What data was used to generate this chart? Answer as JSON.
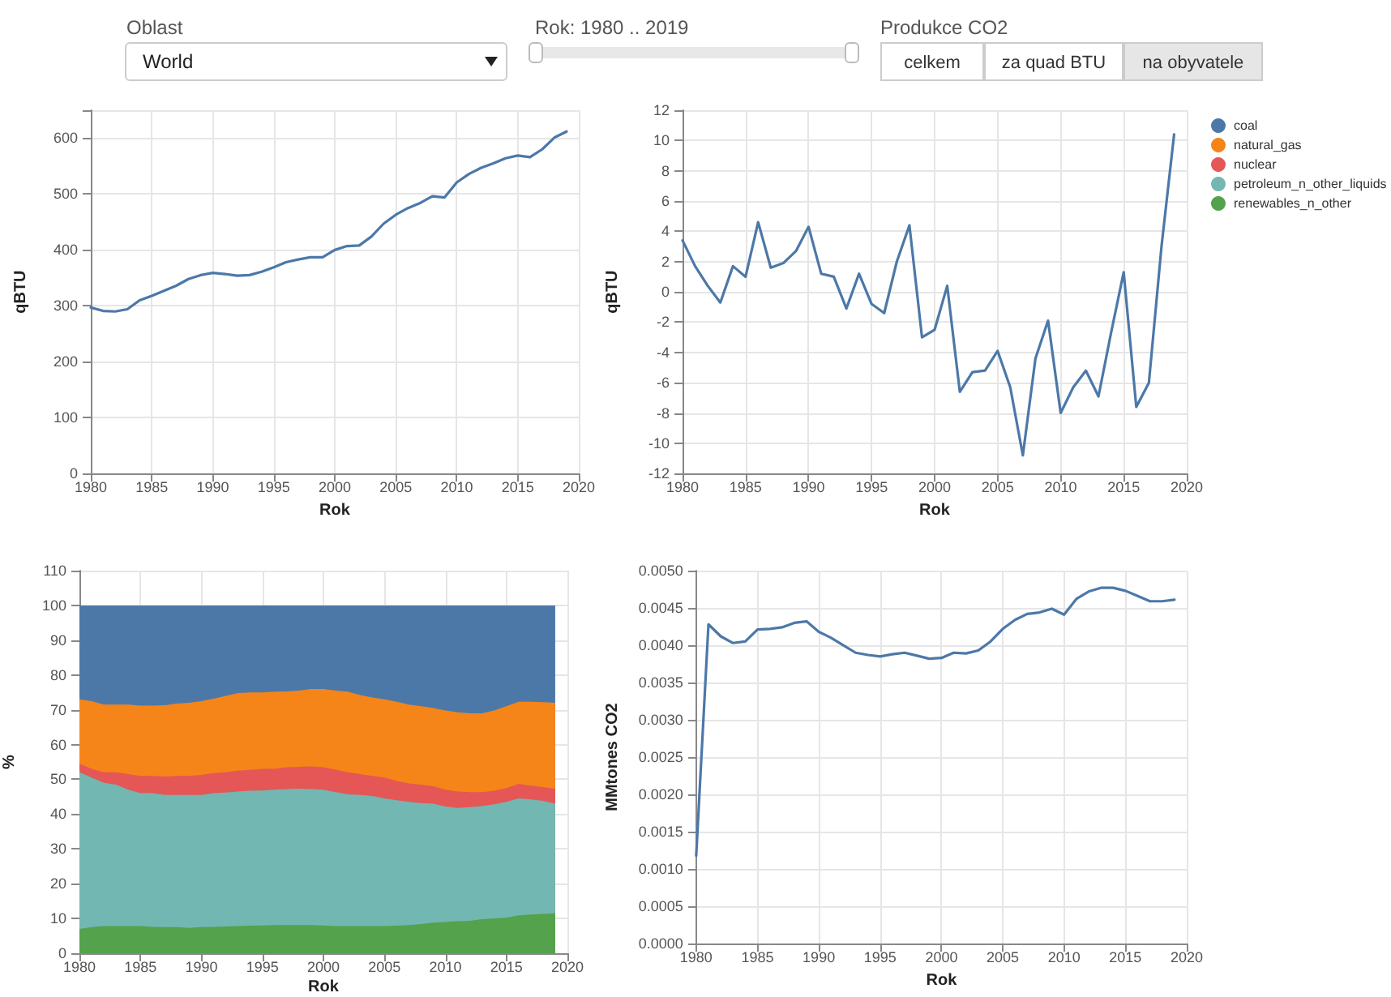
{
  "chart_data": [
    {
      "type": "other",
      "annotations": [
        "Oblast",
        "World",
        "Rok: 1980 .. 2019",
        "Produkce CO2",
        "celkem",
        "za quad BTU",
        "na obyvatele"
      ]
    },
    {
      "type": "line",
      "xlabel": "Rok",
      "ylabel": "qBTU",
      "grid": true,
      "marker": "none",
      "x": [
        1980,
        1981,
        1982,
        1983,
        1984,
        1985,
        1986,
        1987,
        1988,
        1989,
        1990,
        1991,
        1992,
        1993,
        1994,
        1995,
        1996,
        1997,
        1998,
        1999,
        2000,
        2001,
        2002,
        2003,
        2004,
        2005,
        2006,
        2007,
        2008,
        2009,
        2010,
        2011,
        2012,
        2013,
        2014,
        2015,
        2016,
        2017,
        2018,
        2019
      ],
      "xlim": [
        1980,
        2020
      ],
      "xticks": [
        1980,
        1985,
        1990,
        1995,
        2000,
        2005,
        2010,
        2015,
        2020
      ],
      "ylim": [
        0,
        650
      ],
      "yticks": [
        0,
        100,
        200,
        300,
        400,
        500,
        600
      ],
      "series": [
        {
          "color": "#4c78a8",
          "values": [
            297,
            291,
            290,
            294,
            310,
            318,
            327,
            336,
            348,
            355,
            359,
            357,
            354,
            355,
            361,
            369,
            378,
            383,
            387,
            387,
            400,
            407,
            408,
            424,
            447,
            463,
            475,
            484,
            496,
            494,
            521,
            536,
            547,
            555,
            564,
            569,
            566,
            580,
            601,
            612
          ]
        }
      ]
    },
    {
      "type": "line",
      "xlabel": "Rok",
      "ylabel": "qBTU",
      "grid": true,
      "marker": "none",
      "x": [
        1980,
        1981,
        1982,
        1983,
        1984,
        1985,
        1986,
        1987,
        1988,
        1989,
        1990,
        1991,
        1992,
        1993,
        1994,
        1995,
        1996,
        1997,
        1998,
        1999,
        2000,
        2001,
        2002,
        2003,
        2004,
        2005,
        2006,
        2007,
        2008,
        2009,
        2010,
        2011,
        2012,
        2013,
        2014,
        2015,
        2016,
        2017,
        2018,
        2019
      ],
      "xlim": [
        1980,
        2020
      ],
      "xticks": [
        1980,
        1985,
        1990,
        1995,
        2000,
        2005,
        2010,
        2015,
        2020
      ],
      "ylim": [
        -12,
        12
      ],
      "yticks": [
        -12,
        -10,
        -8,
        -6,
        -4,
        -2,
        0,
        2,
        4,
        6,
        8,
        10,
        12
      ],
      "series": [
        {
          "color": "#4c78a8",
          "values": [
            3.4,
            1.7,
            0.4,
            -0.7,
            1.7,
            1.0,
            4.6,
            1.6,
            1.9,
            2.7,
            4.3,
            1.2,
            1.0,
            -1.1,
            1.2,
            -0.8,
            -1.4,
            2.0,
            4.4,
            -3.0,
            -2.5,
            0.4,
            -6.6,
            -5.3,
            -5.2,
            -3.9,
            -6.3,
            -10.8,
            -4.4,
            -1.9,
            -8.0,
            -6.3,
            -5.2,
            -6.9,
            -2.7,
            1.3,
            -7.6,
            -6.0,
            3.0,
            10.4
          ]
        }
      ]
    },
    {
      "type": "area",
      "stacked": true,
      "xlabel": "Rok",
      "ylabel": "%",
      "grid": true,
      "legend": "top right",
      "x": [
        1980,
        1981,
        1982,
        1983,
        1984,
        1985,
        1986,
        1987,
        1988,
        1989,
        1990,
        1991,
        1992,
        1993,
        1994,
        1995,
        1996,
        1997,
        1998,
        1999,
        2000,
        2001,
        2002,
        2003,
        2004,
        2005,
        2006,
        2007,
        2008,
        2009,
        2010,
        2011,
        2012,
        2013,
        2014,
        2015,
        2016,
        2017,
        2018,
        2019
      ],
      "xlim": [
        1980,
        2020
      ],
      "xticks": [
        1980,
        1985,
        1990,
        1995,
        2000,
        2005,
        2010,
        2015,
        2020
      ],
      "ylim": [
        0,
        110
      ],
      "yticks": [
        0,
        10,
        20,
        30,
        40,
        50,
        60,
        70,
        80,
        90,
        100,
        110
      ],
      "series": [
        {
          "name": "renewables_n_other",
          "color": "#54a24b",
          "values": [
            7,
            7.5,
            7.8,
            7.8,
            7.8,
            7.8,
            7.6,
            7.5,
            7.5,
            7.3,
            7.5,
            7.6,
            7.7,
            7.8,
            7.9,
            8.0,
            8.1,
            8.1,
            8.1,
            8.1,
            8.0,
            7.8,
            7.8,
            7.8,
            7.8,
            7.8,
            7.9,
            8.1,
            8.4,
            8.8,
            9.0,
            9.2,
            9.3,
            9.8,
            10.0,
            10.2,
            10.9,
            11.1,
            11.3,
            11.5
          ]
        },
        {
          "name": "petroleum_n_other_liquids",
          "color": "#72b7b2",
          "values": [
            45,
            43,
            41.2,
            40.7,
            39.2,
            38.2,
            38.4,
            38,
            38,
            38.2,
            38,
            38.4,
            38.5,
            38.7,
            38.8,
            38.8,
            38.9,
            39.1,
            39.2,
            39.1,
            39,
            38.5,
            37.9,
            37.7,
            37.4,
            36.7,
            36.1,
            35.4,
            34.8,
            34.2,
            33.2,
            32.6,
            32.7,
            32.5,
            32.8,
            33.3,
            33.6,
            33.1,
            32.5,
            31.5
          ]
        },
        {
          "name": "nuclear",
          "color": "#e45756",
          "values": [
            2.5,
            2.5,
            3,
            3.5,
            4.5,
            5,
            5,
            5.3,
            5.5,
            5.5,
            5.8,
            5.8,
            5.8,
            6,
            6,
            6.2,
            6,
            6.3,
            6.3,
            6.5,
            6.5,
            6.5,
            6.3,
            6,
            5.8,
            6,
            5.5,
            5.3,
            5.3,
            5,
            4.8,
            4.7,
            4.3,
            4,
            3.9,
            4,
            4.2,
            4,
            4,
            4.3
          ]
        },
        {
          "name": "natural_gas",
          "color": "#f58518",
          "values": [
            18.5,
            19.5,
            19.5,
            19.5,
            20,
            20.2,
            20.2,
            20.5,
            20.8,
            21,
            21.2,
            21.4,
            22,
            22.3,
            22.3,
            22,
            22.2,
            21.8,
            21.9,
            22.3,
            22.5,
            22.7,
            23.2,
            22.7,
            22.5,
            22.5,
            22.8,
            22.7,
            22.5,
            22.5,
            22.8,
            22.8,
            22.7,
            22.7,
            23.1,
            23.5,
            23.6,
            24.1,
            24.4,
            24.7
          ]
        },
        {
          "name": "coal",
          "color": "#4c78a8",
          "values": [
            27,
            27.5,
            28.5,
            28.5,
            28.5,
            28.8,
            28.8,
            28.7,
            28.2,
            28,
            27.5,
            26.8,
            26,
            25.2,
            25,
            25,
            24.8,
            24.7,
            24.5,
            24,
            24,
            24.5,
            24.8,
            25.8,
            26.5,
            27,
            27.7,
            28.5,
            29,
            29.5,
            30.2,
            30.7,
            31,
            31,
            30.2,
            29,
            27.7,
            27.7,
            27.8,
            28
          ]
        }
      ]
    },
    {
      "type": "line",
      "xlabel": "Rok",
      "ylabel": "MMtones CO2",
      "grid": true,
      "marker": "none",
      "x": [
        1980,
        1981,
        1982,
        1983,
        1984,
        1985,
        1986,
        1987,
        1988,
        1989,
        1990,
        1991,
        1992,
        1993,
        1994,
        1995,
        1996,
        1997,
        1998,
        1999,
        2000,
        2001,
        2002,
        2003,
        2004,
        2005,
        2006,
        2007,
        2008,
        2009,
        2010,
        2011,
        2012,
        2013,
        2014,
        2015,
        2016,
        2017,
        2018,
        2019
      ],
      "xlim": [
        1980,
        2020
      ],
      "xticks": [
        1980,
        1985,
        1990,
        1995,
        2000,
        2005,
        2010,
        2015,
        2020
      ],
      "ylim": [
        0,
        0.005
      ],
      "yticks": [
        {
          "value": 0,
          "label": "0.0000"
        },
        {
          "value": 0.0005,
          "label": "0.0005"
        },
        {
          "value": 0.001,
          "label": "0.0010"
        },
        {
          "value": 0.0015,
          "label": "0.0015"
        },
        {
          "value": 0.002,
          "label": "0.0020"
        },
        {
          "value": 0.0025,
          "label": "0.0025"
        },
        {
          "value": 0.003,
          "label": "0.0030"
        },
        {
          "value": 0.0035,
          "label": "0.0035"
        },
        {
          "value": 0.004,
          "label": "0.0040"
        },
        {
          "value": 0.0045,
          "label": "0.0045"
        },
        {
          "value": 0.005,
          "label": "0.0050"
        }
      ],
      "series": [
        {
          "color": "#4c78a8",
          "values": [
            0.00118,
            0.00428,
            0.00412,
            0.00403,
            0.00405,
            0.00421,
            0.00422,
            0.00424,
            0.0043,
            0.00432,
            0.00418,
            0.0041,
            0.004,
            0.0039,
            0.00387,
            0.00385,
            0.00388,
            0.0039,
            0.00386,
            0.00382,
            0.00383,
            0.0039,
            0.00389,
            0.00393,
            0.00405,
            0.00422,
            0.00434,
            0.00442,
            0.00444,
            0.00449,
            0.00441,
            0.00462,
            0.00472,
            0.00477,
            0.00477,
            0.00473,
            0.00466,
            0.00459,
            0.00459,
            0.00461
          ]
        }
      ]
    }
  ]
}
